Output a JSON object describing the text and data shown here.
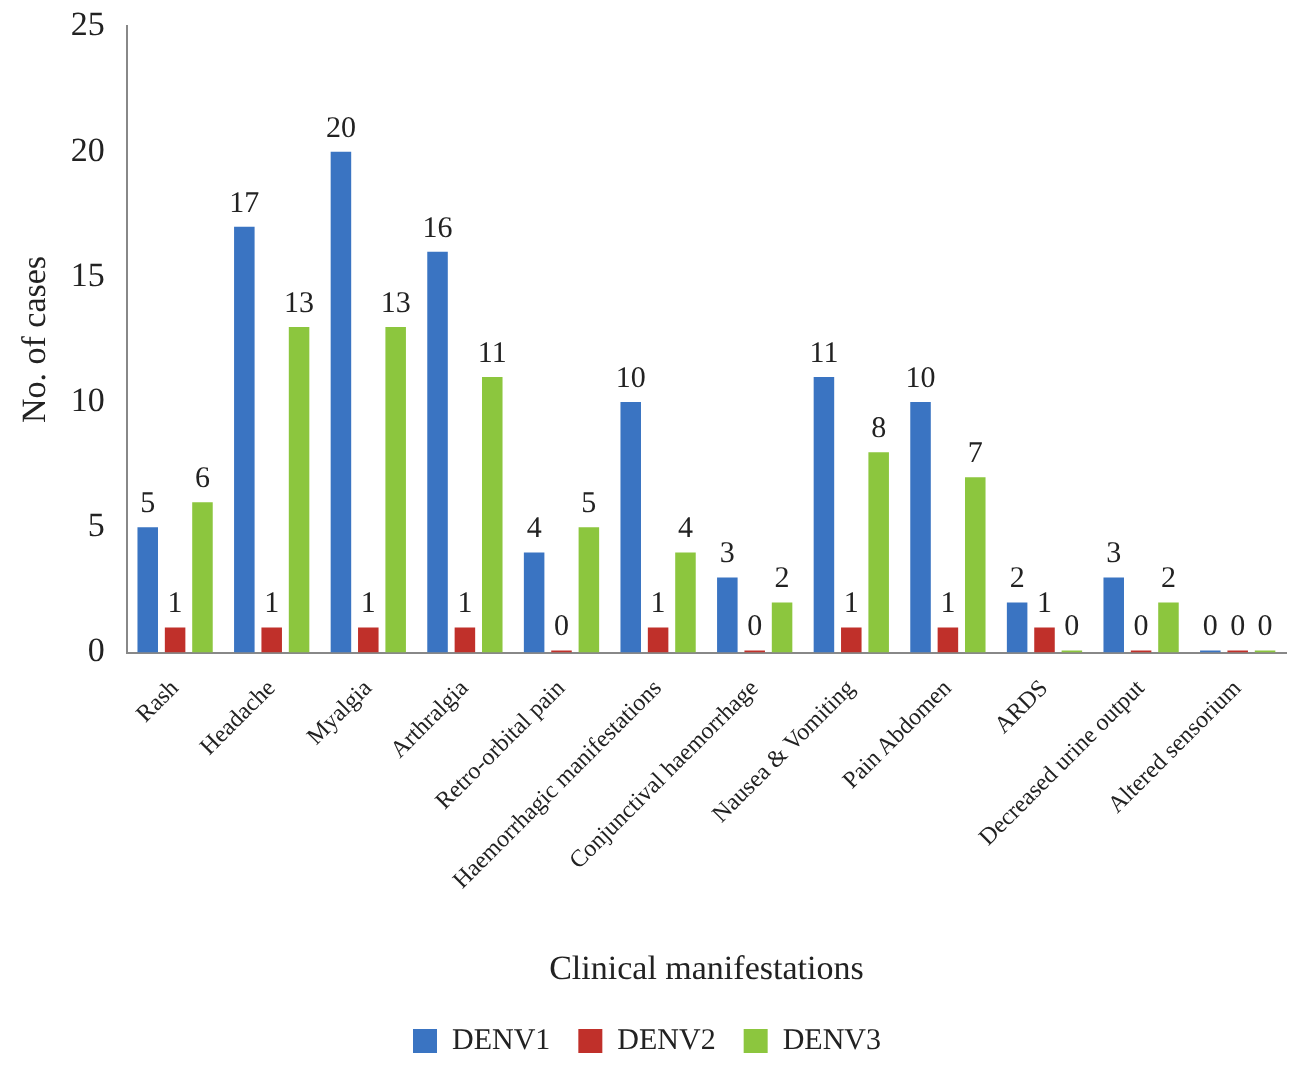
{
  "chart_data": {
    "type": "bar",
    "xlabel": "Clinical manifestations",
    "ylabel": "No. of cases",
    "categories": [
      "Rash",
      "Headache",
      "Myalgia",
      "Arthralgia",
      "Retro-orbital pain",
      "Haemorrhagic manifestations",
      "Conjunctival haemorrhage",
      "Nausea & Vomiting",
      "Pain Abdomen",
      "ARDS",
      "Decreased urine output",
      "Altered sensorium"
    ],
    "series": [
      {
        "name": "DENV1",
        "color": "#3a74c2",
        "values": [
          5,
          17,
          20,
          16,
          4,
          10,
          3,
          11,
          10,
          2,
          3,
          0
        ]
      },
      {
        "name": "DENV2",
        "color": "#c0302a",
        "values": [
          1,
          1,
          1,
          1,
          0,
          1,
          0,
          1,
          1,
          1,
          0,
          0
        ]
      },
      {
        "name": "DENV3",
        "color": "#8cc63e",
        "values": [
          6,
          13,
          13,
          11,
          5,
          4,
          2,
          8,
          7,
          0,
          2,
          0
        ]
      }
    ],
    "ylim": [
      0,
      25
    ],
    "yticks": [
      0,
      5,
      10,
      15,
      20,
      25
    ],
    "grid": false,
    "legend": "bottom",
    "data_labels": true
  }
}
